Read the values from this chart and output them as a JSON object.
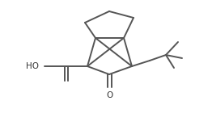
{
  "background_color": "#ffffff",
  "line_color": "#555555",
  "line_width": 1.4
}
